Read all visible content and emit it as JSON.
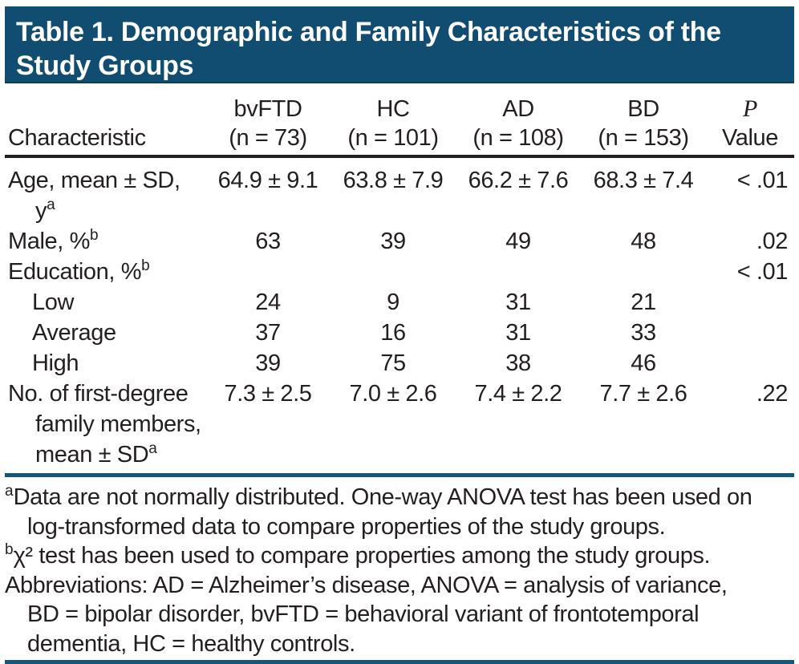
{
  "colors": {
    "banner_background": "#114d70",
    "banner_text": "#ffffff",
    "body_text": "#231f20",
    "header_rule": "#231f20",
    "blue_rule": "#15567d"
  },
  "title": {
    "line1": "Table 1. Demographic and Family Characteristics of the",
    "line2": "Study Groups"
  },
  "table": {
    "characteristic_header": "Characteristic",
    "p_column": {
      "name": "P",
      "label": "Value"
    },
    "columns": [
      {
        "name": "bvFTD",
        "n": "(n = 73)"
      },
      {
        "name": "HC",
        "n": "(n = 101)"
      },
      {
        "name": "AD",
        "n": "(n = 108)"
      },
      {
        "name": "BD",
        "n": "(n = 153)"
      }
    ],
    "rows": [
      {
        "label": "Age, mean ± SD, y",
        "sup": "a",
        "values": [
          "64.9 ± 9.1",
          "63.8 ± 7.9",
          "66.2 ± 7.6",
          "68.3 ± 7.4"
        ],
        "p": "< .01"
      },
      {
        "label": "Male, %",
        "sup": "b",
        "values": [
          "63",
          "39",
          "49",
          "48"
        ],
        "p": ".02"
      },
      {
        "label": "Education, %",
        "sup": "b",
        "values": [
          "",
          "",
          "",
          ""
        ],
        "p": "< .01"
      },
      {
        "label": "Low",
        "values": [
          "24",
          "9",
          "31",
          "21"
        ],
        "p": ""
      },
      {
        "label": "Average",
        "values": [
          "37",
          "16",
          "31",
          "33"
        ],
        "p": ""
      },
      {
        "label": "High",
        "values": [
          "39",
          "75",
          "38",
          "46"
        ],
        "p": ""
      },
      {
        "label": "No. of first-degree family members, mean ± SD",
        "sup": "a",
        "values": [
          "7.3 ± 2.5",
          "7.0 ± 2.6",
          "7.4 ± 2.2",
          "7.7 ± 2.6"
        ],
        "p": ".22"
      }
    ]
  },
  "footnotes": {
    "a": {
      "marker": "a",
      "lines": [
        "Data are not normally distributed. One-way ANOVA test has been used on",
        "log-transformed data to compare properties of the study groups."
      ]
    },
    "b": {
      "marker": "b",
      "lines": [
        "χ² test has been used to compare properties among the study groups."
      ]
    },
    "abbreviations": {
      "lines": [
        "Abbreviations: AD = Alzheimer’s disease, ANOVA = analysis of variance,",
        "BD = bipolar disorder, bvFTD = behavioral variant of frontotemporal",
        "dementia, HC = healthy controls."
      ]
    }
  }
}
